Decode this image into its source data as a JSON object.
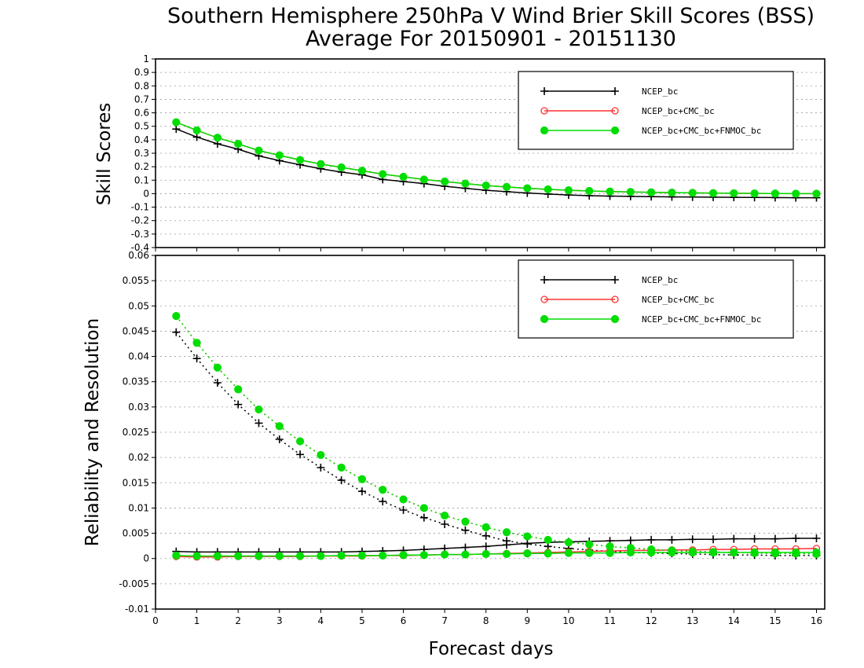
{
  "title_line1": "Southern Hemisphere 250hPa V Wind Brier Skill Scores (BSS)",
  "title_line2": "Average For 20150901 - 20151130",
  "xlabel": "Forecast days",
  "colors": {
    "NCEP_bc": "#000000",
    "NCEP_bc+CMC_bc": "#ff3030",
    "NCEP_bc+CMC_bc+FNMOC_bc": "#00dd00"
  },
  "legend_labels": [
    "NCEP_bc",
    "NCEP_bc+CMC_bc",
    "NCEP_bc+CMC_bc+FNMOC_bc"
  ],
  "chart_data": [
    {
      "type": "line",
      "ylabel": "Skill Scores",
      "xlim": [
        0,
        16.2
      ],
      "ylim": [
        -0.4,
        1
      ],
      "xticks": [
        0,
        1,
        2,
        3,
        4,
        5,
        6,
        7,
        8,
        9,
        10,
        11,
        12,
        13,
        14,
        15,
        16
      ],
      "xticklabels": [
        "0",
        "1",
        "2",
        "3",
        "4",
        "5",
        "6",
        "7",
        "8",
        "9",
        "10",
        "11",
        "12",
        "13",
        "14",
        "15",
        "16"
      ],
      "yticks": [
        -0.4,
        -0.3,
        -0.2,
        -0.1,
        0,
        0.1,
        0.2,
        0.3,
        0.4,
        0.5,
        0.6,
        0.7,
        0.8,
        0.9,
        1
      ],
      "yticklabels": [
        "-0.4",
        "-0.3",
        "-0.2",
        "-0.1",
        "0",
        "0.1",
        "0.2",
        "0.3",
        "0.4",
        "0.5",
        "0.6",
        "0.7",
        "0.8",
        "0.9",
        "1"
      ],
      "grid": true,
      "legend_position": "top-right",
      "x": [
        0.5,
        1,
        1.5,
        2,
        2.5,
        3,
        3.5,
        4,
        4.5,
        5,
        5.5,
        6,
        6.5,
        7,
        7.5,
        8,
        8.5,
        9,
        9.5,
        10,
        10.5,
        11,
        11.5,
        12,
        12.5,
        13,
        13.5,
        14,
        14.5,
        15,
        15.5,
        16
      ],
      "series": [
        {
          "name": "NCEP_bc",
          "marker": "plus",
          "style": "solid",
          "values": [
            0.48,
            0.42,
            0.37,
            0.33,
            0.28,
            0.245,
            0.215,
            0.185,
            0.16,
            0.14,
            0.105,
            0.09,
            0.075,
            0.055,
            0.04,
            0.025,
            0.015,
            0.005,
            -0.003,
            -0.01,
            -0.015,
            -0.018,
            -0.02,
            -0.022,
            -0.024,
            -0.025,
            -0.026,
            -0.027,
            -0.028,
            -0.029,
            -0.03,
            -0.03
          ]
        },
        {
          "name": "NCEP_bc+CMC_bc",
          "marker": "open-circle",
          "style": "solid",
          "values": [
            0.53,
            0.47,
            0.415,
            0.37,
            0.32,
            0.285,
            0.25,
            0.22,
            0.195,
            0.17,
            0.145,
            0.125,
            0.105,
            0.09,
            0.075,
            0.06,
            0.05,
            0.04,
            0.032,
            0.025,
            0.02,
            0.016,
            0.013,
            0.01,
            0.008,
            0.006,
            0.004,
            0.003,
            0.002,
            0.001,
            0,
            0
          ]
        },
        {
          "name": "NCEP_bc+CMC_bc+FNMOC_bc",
          "marker": "filled-circle",
          "style": "solid",
          "values": [
            0.53,
            0.47,
            0.415,
            0.37,
            0.32,
            0.285,
            0.25,
            0.22,
            0.195,
            0.17,
            0.145,
            0.125,
            0.105,
            0.09,
            0.075,
            0.06,
            0.05,
            0.04,
            0.032,
            0.025,
            0.02,
            0.016,
            0.013,
            0.01,
            0.008,
            0.006,
            0.004,
            0.003,
            0.002,
            0.001,
            0,
            0
          ]
        }
      ]
    },
    {
      "type": "line",
      "ylabel": "Reliability and Resolution",
      "xlim": [
        0,
        16.2
      ],
      "ylim": [
        -0.01,
        0.06
      ],
      "xticks": [
        0,
        1,
        2,
        3,
        4,
        5,
        6,
        7,
        8,
        9,
        10,
        11,
        12,
        13,
        14,
        15,
        16
      ],
      "xticklabels": [
        "0",
        "1",
        "2",
        "3",
        "4",
        "5",
        "6",
        "7",
        "8",
        "9",
        "10",
        "11",
        "12",
        "13",
        "14",
        "15",
        "16"
      ],
      "yticks": [
        -0.01,
        -0.005,
        0,
        0.005,
        0.01,
        0.015,
        0.02,
        0.025,
        0.03,
        0.035,
        0.04,
        0.045,
        0.05,
        0.055,
        0.06
      ],
      "yticklabels": [
        "-0.01",
        "-0.005",
        "0",
        "0.005",
        "0.01",
        "0.015",
        "0.02",
        "0.025",
        "0.03",
        "0.035",
        "0.04",
        "0.045",
        "0.05",
        "0.055",
        "0.06"
      ],
      "grid": true,
      "legend_position": "top-right",
      "x": [
        0.5,
        1,
        1.5,
        2,
        2.5,
        3,
        3.5,
        4,
        4.5,
        5,
        5.5,
        6,
        6.5,
        7,
        7.5,
        8,
        8.5,
        9,
        9.5,
        10,
        10.5,
        11,
        11.5,
        12,
        12.5,
        13,
        13.5,
        14,
        14.5,
        15,
        15.5,
        16
      ],
      "series": [
        {
          "name": "NCEP_bc",
          "component": "resolution",
          "marker": "plus",
          "style": "dotted",
          "values": [
            0.0448,
            0.0396,
            0.0348,
            0.0305,
            0.0268,
            0.0236,
            0.0206,
            0.018,
            0.0155,
            0.0133,
            0.0113,
            0.0096,
            0.0081,
            0.0068,
            0.0056,
            0.0045,
            0.0035,
            0.0029,
            0.0024,
            0.002,
            0.0017,
            0.0014,
            0.0012,
            0.0011,
            0.001,
            0.0009,
            0.0008,
            0.0007,
            0.0007,
            0.0006,
            0.0006,
            0.0006
          ]
        },
        {
          "name": "NCEP_bc",
          "component": "reliability",
          "marker": "plus",
          "style": "solid",
          "values": [
            0.0014,
            0.0013,
            0.0013,
            0.0013,
            0.0013,
            0.0013,
            0.0013,
            0.0013,
            0.0013,
            0.0014,
            0.0015,
            0.0016,
            0.0018,
            0.002,
            0.0022,
            0.0024,
            0.0027,
            0.003,
            0.0032,
            0.0033,
            0.0034,
            0.0035,
            0.0036,
            0.0037,
            0.0037,
            0.0038,
            0.0038,
            0.0039,
            0.0039,
            0.0039,
            0.004,
            0.004
          ]
        },
        {
          "name": "NCEP_bc+CMC_bc",
          "component": "resolution",
          "marker": "open-circle",
          "style": "dotted",
          "values": [
            0.048,
            0.0427,
            0.0378,
            0.0335,
            0.0295,
            0.0262,
            0.0232,
            0.0205,
            0.018,
            0.0157,
            0.0136,
            0.0117,
            0.01,
            0.0085,
            0.0073,
            0.0062,
            0.0052,
            0.0044,
            0.0037,
            0.0032,
            0.0028,
            0.0024,
            0.0021,
            0.0018,
            0.0016,
            0.0014,
            0.0013,
            0.0012,
            0.0011,
            0.001,
            0.001,
            0.0009
          ]
        },
        {
          "name": "NCEP_bc+CMC_bc",
          "component": "reliability",
          "marker": "open-circle",
          "style": "solid",
          "values": [
            0.0004,
            0.0003,
            0.0003,
            0.0004,
            0.0004,
            0.0004,
            0.0004,
            0.0005,
            0.0005,
            0.0005,
            0.0006,
            0.0006,
            0.0007,
            0.0008,
            0.0008,
            0.0009,
            0.001,
            0.0011,
            0.0012,
            0.0013,
            0.0014,
            0.0015,
            0.0016,
            0.0016,
            0.0017,
            0.0017,
            0.0018,
            0.0018,
            0.0019,
            0.0019,
            0.0019,
            0.002
          ]
        },
        {
          "name": "NCEP_bc+CMC_bc+FNMOC_bc",
          "component": "resolution",
          "marker": "filled-circle",
          "style": "dotted",
          "values": [
            0.048,
            0.0427,
            0.0378,
            0.0335,
            0.0295,
            0.0262,
            0.0232,
            0.0205,
            0.018,
            0.0157,
            0.0136,
            0.0117,
            0.01,
            0.0085,
            0.0073,
            0.0062,
            0.0052,
            0.0044,
            0.0037,
            0.0032,
            0.0028,
            0.0024,
            0.0021,
            0.0018,
            0.0016,
            0.0014,
            0.0013,
            0.0012,
            0.0011,
            0.001,
            0.001,
            0.0009
          ]
        },
        {
          "name": "NCEP_bc+CMC_bc+FNMOC_bc",
          "component": "reliability",
          "marker": "filled-circle",
          "style": "solid",
          "values": [
            0.0006,
            0.0005,
            0.0005,
            0.0005,
            0.0005,
            0.0005,
            0.0005,
            0.0005,
            0.0006,
            0.0006,
            0.0006,
            0.0007,
            0.0007,
            0.0008,
            0.0008,
            0.0009,
            0.0009,
            0.001,
            0.001,
            0.0011,
            0.0011,
            0.0011,
            0.0012,
            0.0012,
            0.0012,
            0.0012,
            0.0012,
            0.0012,
            0.0012,
            0.0012,
            0.0012,
            0.0012
          ]
        }
      ]
    }
  ]
}
